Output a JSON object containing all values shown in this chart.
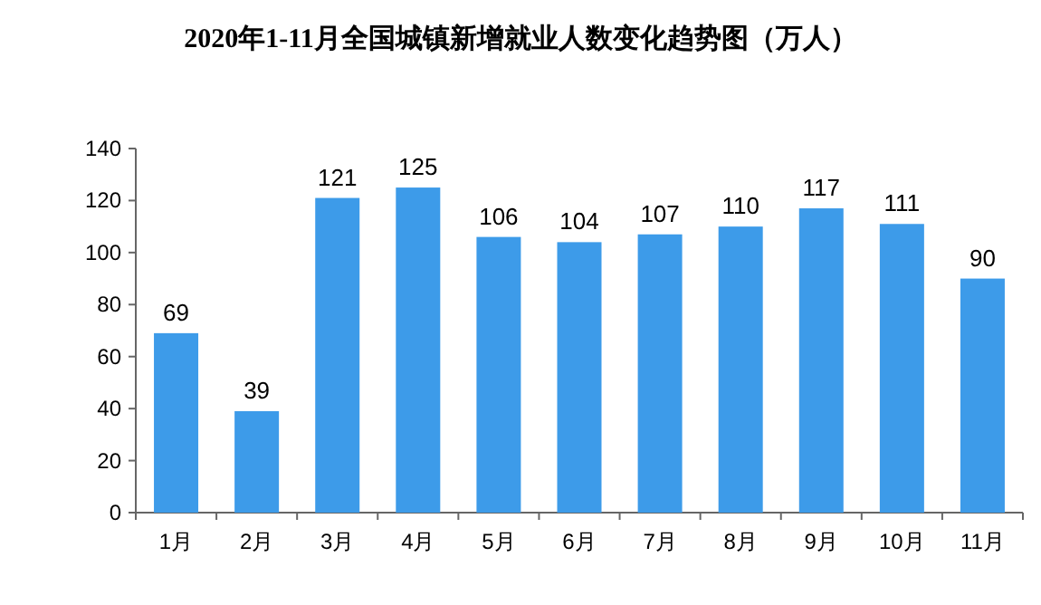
{
  "chart_data": {
    "type": "bar",
    "title": "2020年1-11月全国城镇新增就业人数变化趋势图（万人）",
    "categories": [
      "1月",
      "2月",
      "3月",
      "4月",
      "5月",
      "6月",
      "7月",
      "8月",
      "9月",
      "10月",
      "11月"
    ],
    "values": [
      69,
      39,
      121,
      125,
      106,
      104,
      107,
      110,
      117,
      111,
      90
    ],
    "color": "#3d9be9",
    "ylim": [
      0,
      140
    ],
    "yticks": [
      0,
      20,
      40,
      60,
      80,
      100,
      120,
      140
    ],
    "data_labels": true,
    "grid": false
  }
}
